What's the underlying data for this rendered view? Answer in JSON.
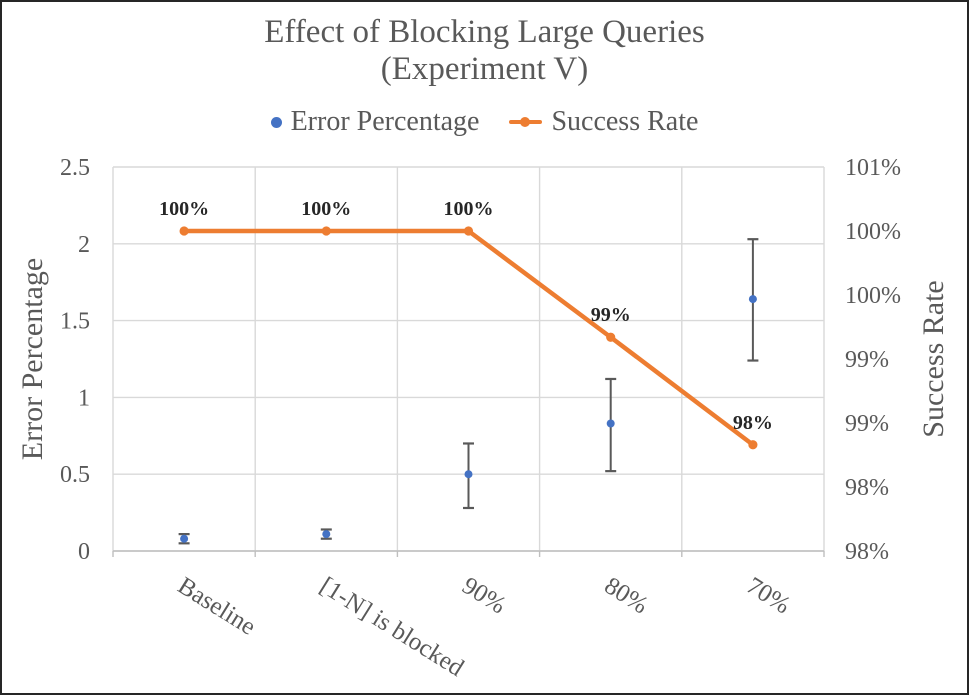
{
  "title": {
    "line1": "Effect of Blocking Large Queries",
    "line2": "(Experiment V)",
    "full": "Effect of Blocking Large Queries (Experiment V)"
  },
  "legend": {
    "items": [
      {
        "label": "Error Percentage",
        "marker": "dot-icon",
        "color": "#4472C4"
      },
      {
        "label": "Success Rate",
        "marker": "line-dot-icon",
        "color": "#ED7D31"
      }
    ]
  },
  "chart_data": {
    "type": "line",
    "title": "Effect of Blocking Large Queries (Experiment V)",
    "categories": [
      "Baseline",
      "[1-N] is blocked",
      "90%",
      "80%",
      "70%"
    ],
    "series": [
      {
        "name": "Error Percentage",
        "chart_type": "scatter",
        "axis": "left",
        "color": "#4472C4",
        "values": [
          0.08,
          0.11,
          0.5,
          0.83,
          1.64
        ],
        "error_bars": {
          "low": [
            0.05,
            0.08,
            0.28,
            0.52,
            1.24
          ],
          "high": [
            0.11,
            0.14,
            0.7,
            1.12,
            2.03
          ]
        }
      },
      {
        "name": "Success Rate",
        "chart_type": "line",
        "axis": "right",
        "color": "#ED7D31",
        "values": [
          100,
          100,
          100,
          99.17,
          98.33
        ],
        "data_labels": [
          "100%",
          "100%",
          "100%",
          "99%",
          "98%"
        ]
      }
    ],
    "left_axis": {
      "label": "Error Percentage",
      "min": 0,
      "max": 2.5,
      "step": 0.5,
      "tick_labels": [
        "0",
        "0.5",
        "1",
        "1.5",
        "2",
        "2.5"
      ]
    },
    "right_axis": {
      "label": "Success Rate",
      "min": 97.5,
      "max": 100.5,
      "step": 0.5,
      "tick_labels": [
        "98%",
        "98%",
        "99%",
        "99%",
        "100%",
        "100%",
        "101%"
      ]
    },
    "grid": true,
    "legend_position": "top",
    "x_label_rotation_deg": 32
  },
  "colors": {
    "error_series": "#4472C4",
    "success_series": "#ED7D31",
    "text_gray": "#595959",
    "gridline": "#D9D9D9",
    "axis_line": "#BFBFBF",
    "data_label": "#262626",
    "error_bar": "#595959",
    "frame_border": "#262626",
    "background": "#FFFFFF"
  }
}
